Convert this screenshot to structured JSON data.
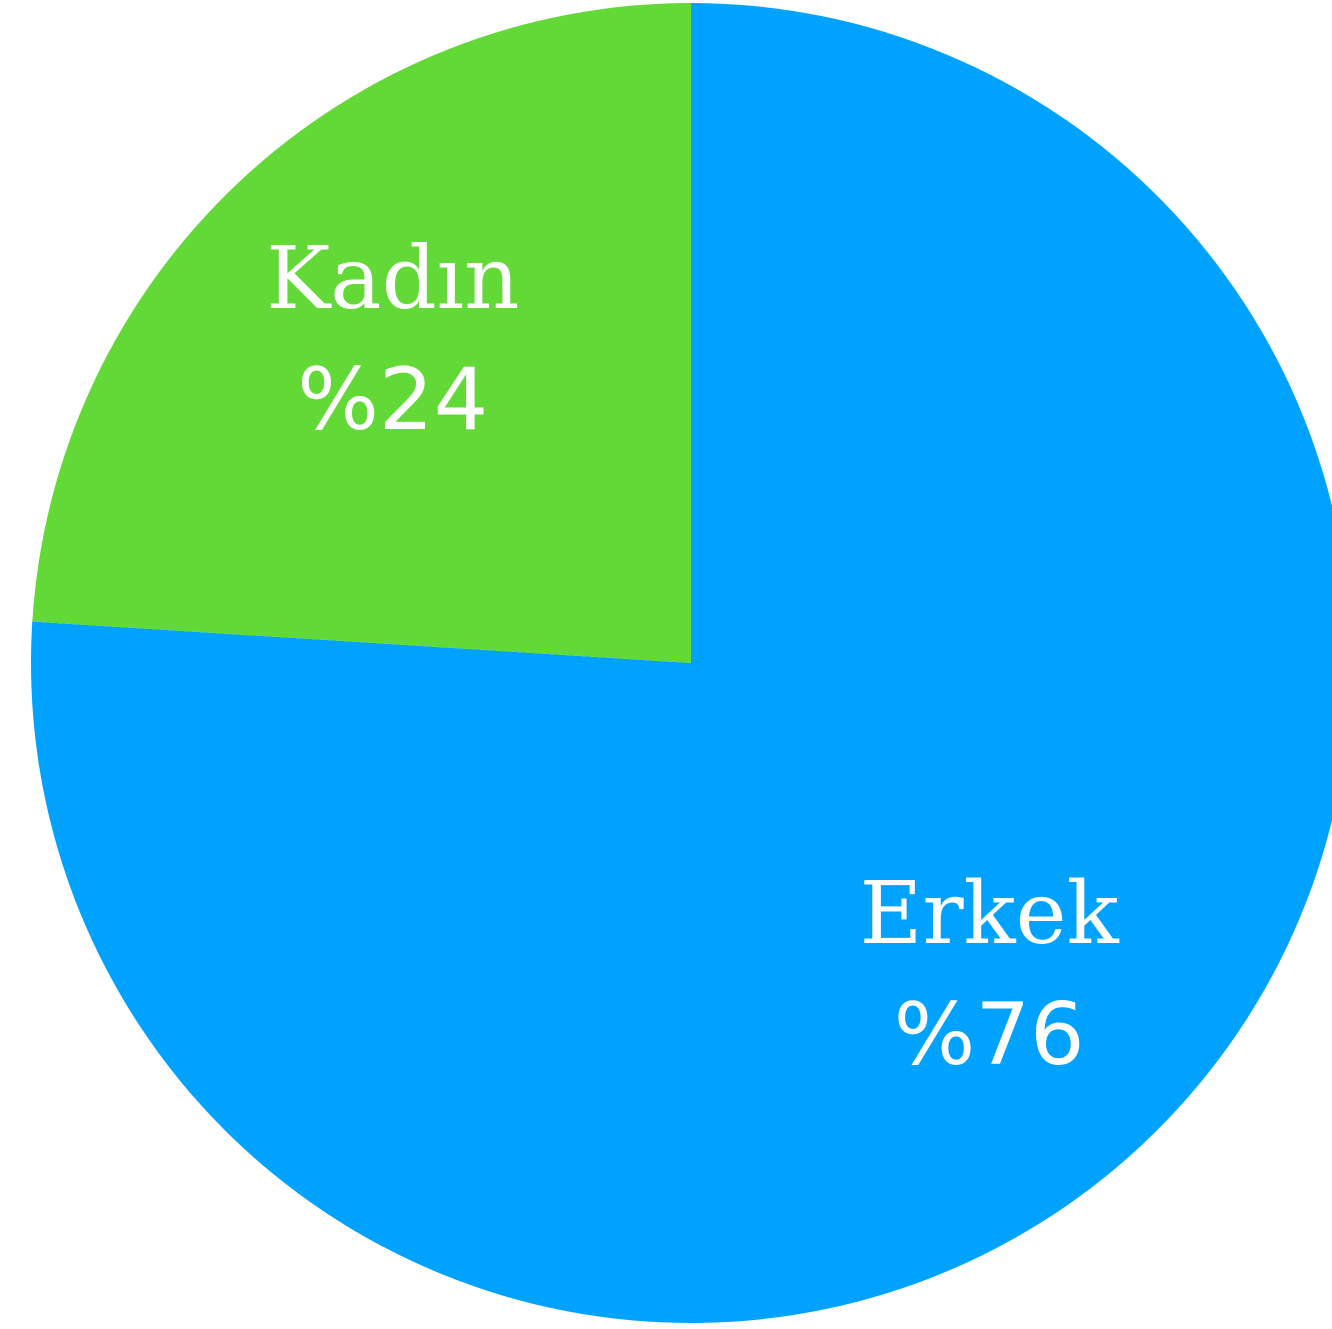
{
  "chart_data": {
    "type": "pie",
    "categories": [
      "Erkek",
      "Kadın"
    ],
    "values": [
      76,
      24
    ],
    "value_labels": [
      "%76",
      "%24"
    ],
    "colors": [
      "#00a2ff",
      "#63d937"
    ]
  }
}
